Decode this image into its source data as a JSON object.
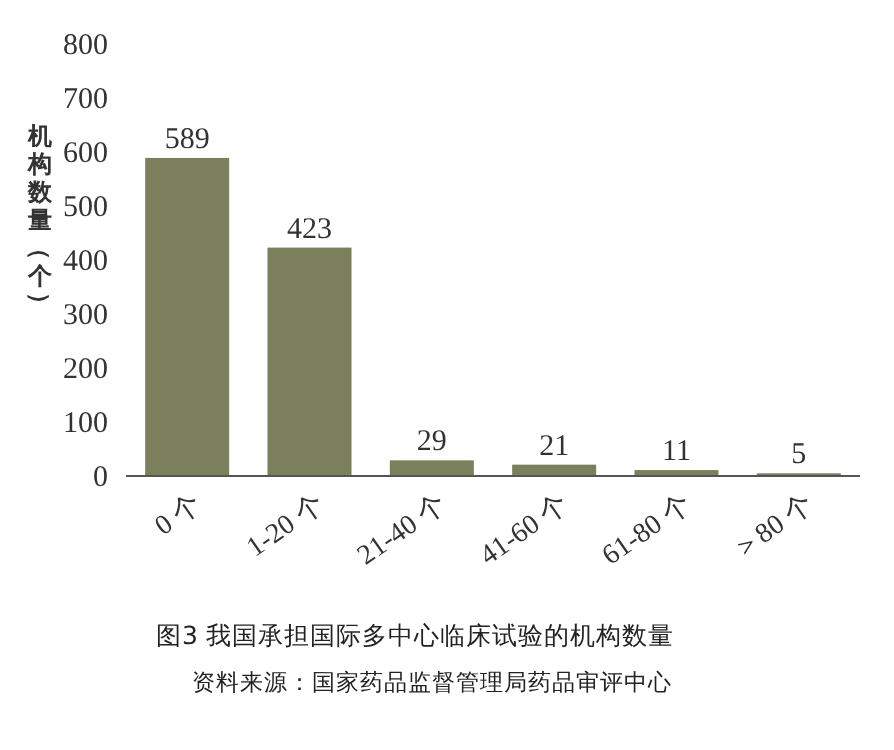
{
  "chart_data": {
    "type": "bar",
    "title": "图3   我国承担国际多中心临床试验的机构数量",
    "ylabel": "机构数量（个）",
    "annotations": [
      "资料来源：国家药品监督管理局药品审评中心"
    ],
    "categories": [
      "0 个",
      "1-20 个",
      "21-40 个",
      "41-60 个",
      "61-80 个",
      "＞80 个"
    ],
    "values": [
      589,
      423,
      29,
      21,
      11,
      5
    ],
    "color": "#7b7f5c",
    "ylim": [
      0,
      800
    ],
    "yticks": [
      0,
      100,
      200,
      300,
      400,
      500,
      600,
      700,
      800
    ],
    "data_labels": true,
    "grid": false
  }
}
